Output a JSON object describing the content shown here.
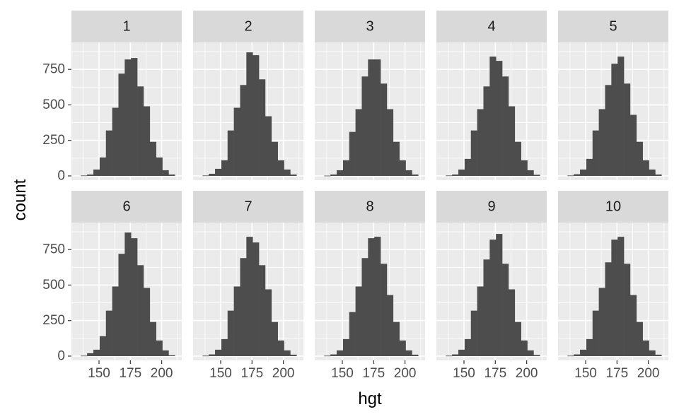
{
  "chart_data": {
    "type": "bar",
    "subtype": "faceted-histogram",
    "xlabel": "hgt",
    "ylabel": "count",
    "xlim": [
      128,
      216
    ],
    "ylim": [
      -30,
      940
    ],
    "x_ticks": [
      150,
      175,
      200
    ],
    "x_tick_labels": [
      "150",
      "175",
      "200"
    ],
    "y_ticks": [
      0,
      250,
      500,
      750
    ],
    "y_tick_labels": [
      "0",
      "250",
      "500",
      "750"
    ],
    "grid": true,
    "legend": "none",
    "colors": {
      "bar": "#4d4d4d",
      "panel_background": "#ebebeb",
      "strip_background": "#d9d9d9",
      "grid": "#ffffff"
    },
    "bin_centers": [
      138,
      143,
      148,
      153,
      158,
      163,
      168,
      173,
      178,
      183,
      188,
      193,
      198,
      203,
      208
    ],
    "panels": [
      {
        "label": "1",
        "counts": [
          3,
          10,
          45,
          130,
          320,
          480,
          720,
          820,
          830,
          630,
          490,
          240,
          130,
          40,
          10
        ]
      },
      {
        "label": "2",
        "counts": [
          3,
          15,
          50,
          110,
          320,
          480,
          640,
          870,
          850,
          680,
          420,
          240,
          110,
          45,
          10
        ]
      },
      {
        "label": "3",
        "counts": [
          2,
          10,
          40,
          110,
          310,
          470,
          700,
          820,
          820,
          650,
          470,
          240,
          110,
          40,
          10
        ]
      },
      {
        "label": "4",
        "counts": [
          3,
          10,
          45,
          120,
          320,
          470,
          630,
          840,
          810,
          700,
          490,
          240,
          110,
          40,
          8
        ]
      },
      {
        "label": "5",
        "counts": [
          3,
          12,
          45,
          120,
          320,
          470,
          640,
          790,
          840,
          650,
          430,
          240,
          110,
          45,
          10
        ]
      },
      {
        "label": "6",
        "counts": [
          3,
          20,
          45,
          140,
          320,
          490,
          720,
          870,
          830,
          640,
          480,
          240,
          110,
          40,
          6
        ]
      },
      {
        "label": "7",
        "counts": [
          3,
          12,
          45,
          120,
          320,
          490,
          690,
          840,
          800,
          640,
          470,
          240,
          110,
          40,
          10
        ]
      },
      {
        "label": "8",
        "counts": [
          3,
          12,
          40,
          120,
          310,
          490,
          690,
          830,
          840,
          650,
          430,
          240,
          110,
          40,
          10
        ]
      },
      {
        "label": "9",
        "counts": [
          3,
          12,
          45,
          120,
          320,
          490,
          680,
          820,
          860,
          650,
          470,
          240,
          110,
          40,
          8
        ]
      },
      {
        "label": "10",
        "counts": [
          3,
          12,
          45,
          120,
          320,
          480,
          660,
          820,
          840,
          650,
          430,
          240,
          110,
          40,
          10
        ]
      }
    ]
  }
}
